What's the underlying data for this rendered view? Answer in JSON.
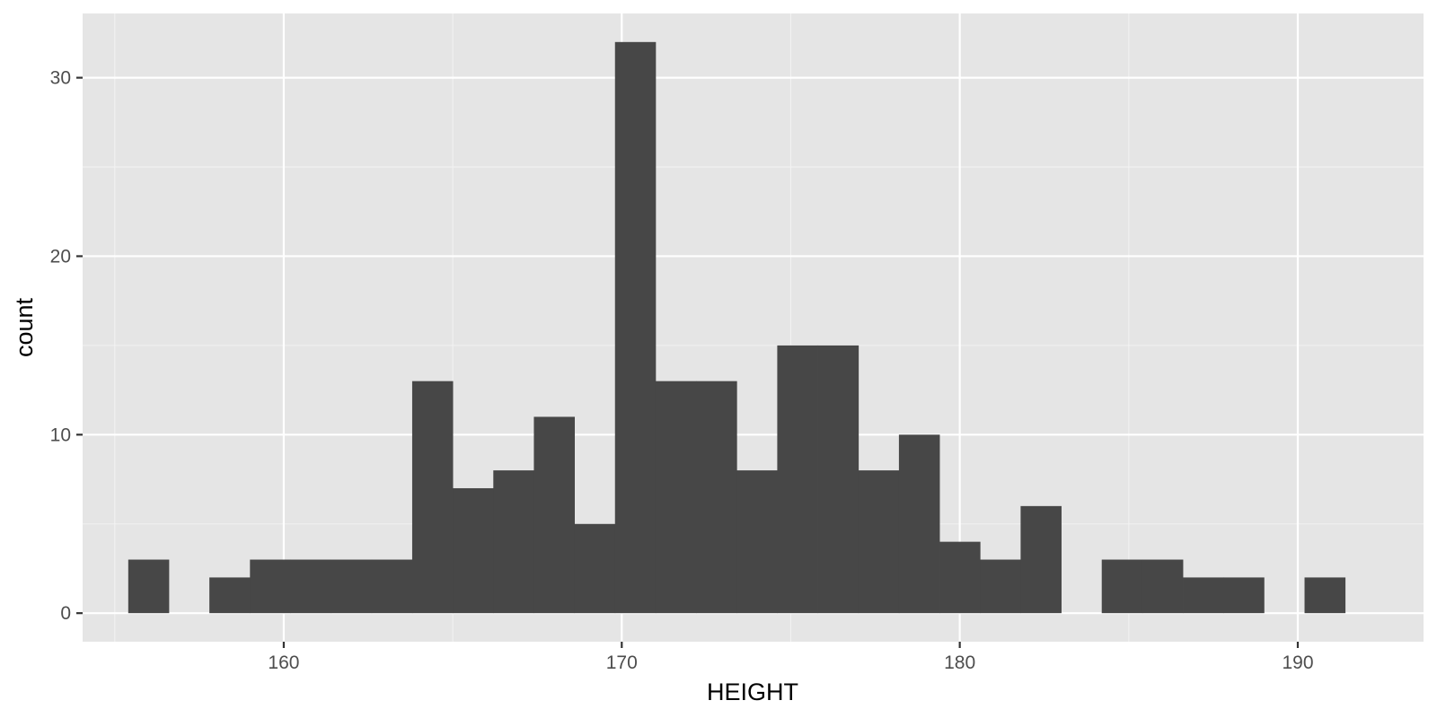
{
  "chart_data": {
    "type": "bar",
    "subtype": "histogram",
    "title": "",
    "xlabel": "HEIGHT",
    "ylabel": "count",
    "xlim": [
      154.05,
      193.72
    ],
    "ylim": [
      -1.6,
      33.6
    ],
    "x_ticks": [
      160,
      170,
      180,
      190
    ],
    "y_ticks": [
      0,
      10,
      20,
      30
    ],
    "grid": true,
    "legend": "none",
    "bin_width": 1.2,
    "bins": [
      {
        "x0": 155.4,
        "x1": 156.6,
        "count": 3
      },
      {
        "x0": 156.6,
        "x1": 157.8,
        "count": 0
      },
      {
        "x0": 157.8,
        "x1": 159.0,
        "count": 2
      },
      {
        "x0": 159.0,
        "x1": 160.2,
        "count": 3
      },
      {
        "x0": 160.2,
        "x1": 161.4,
        "count": 3
      },
      {
        "x0": 161.4,
        "x1": 162.6,
        "count": 3
      },
      {
        "x0": 162.6,
        "x1": 163.8,
        "count": 3
      },
      {
        "x0": 163.8,
        "x1": 165.0,
        "count": 13
      },
      {
        "x0": 165.0,
        "x1": 166.2,
        "count": 7
      },
      {
        "x0": 166.2,
        "x1": 167.4,
        "count": 8
      },
      {
        "x0": 167.4,
        "x1": 168.6,
        "count": 11
      },
      {
        "x0": 168.6,
        "x1": 169.8,
        "count": 5
      },
      {
        "x0": 169.8,
        "x1": 171.0,
        "count": 32
      },
      {
        "x0": 171.0,
        "x1": 172.2,
        "count": 13
      },
      {
        "x0": 172.2,
        "x1": 173.4,
        "count": 13
      },
      {
        "x0": 173.4,
        "x1": 174.6,
        "count": 8
      },
      {
        "x0": 174.6,
        "x1": 175.8,
        "count": 15
      },
      {
        "x0": 175.8,
        "x1": 177.0,
        "count": 15
      },
      {
        "x0": 177.0,
        "x1": 178.2,
        "count": 8
      },
      {
        "x0": 178.2,
        "x1": 179.4,
        "count": 10
      },
      {
        "x0": 179.4,
        "x1": 180.6,
        "count": 4
      },
      {
        "x0": 180.6,
        "x1": 181.8,
        "count": 3
      },
      {
        "x0": 181.8,
        "x1": 183.0,
        "count": 6
      },
      {
        "x0": 183.0,
        "x1": 184.2,
        "count": 0
      },
      {
        "x0": 184.2,
        "x1": 185.4,
        "count": 3
      },
      {
        "x0": 185.4,
        "x1": 186.6,
        "count": 3
      },
      {
        "x0": 186.6,
        "x1": 187.8,
        "count": 2
      },
      {
        "x0": 187.8,
        "x1": 189.0,
        "count": 2
      },
      {
        "x0": 189.0,
        "x1": 190.2,
        "count": 0
      },
      {
        "x0": 190.2,
        "x1": 191.4,
        "count": 2
      }
    ],
    "colors": {
      "panel_background": "#e5e5e5",
      "grid_major": "#ffffff",
      "grid_minor": "#f2f2f2",
      "bar_fill": "#474747",
      "tick_text": "#4d4d4d",
      "axis_title_text": "#000000"
    }
  }
}
